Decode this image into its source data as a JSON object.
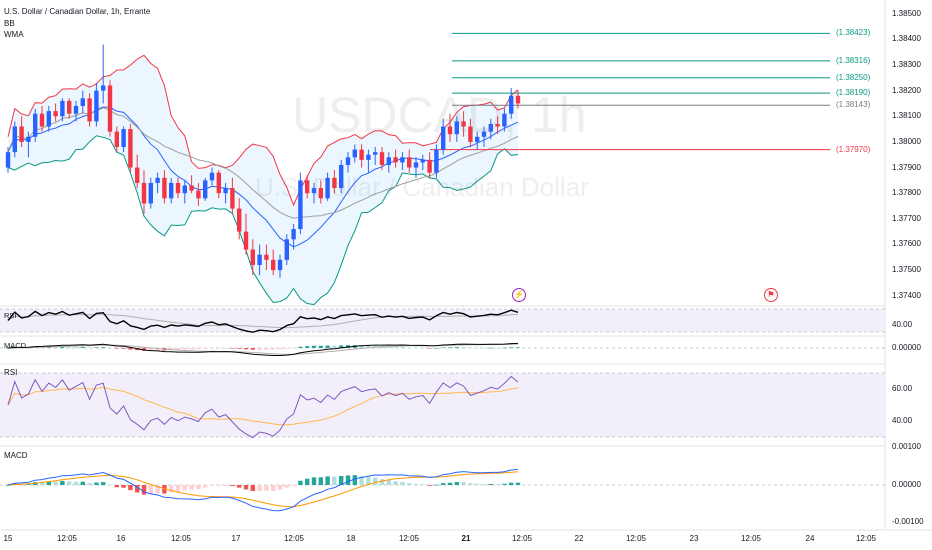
{
  "header": {
    "title": "U.S. Dollar / Canadian Dollar, 1h, Errante",
    "indicator_bb": "BB",
    "indicator_wma": "WMA"
  },
  "watermark": {
    "symbol": "USDCAD, 1h",
    "description": "U.S. Dollar / Canadian Dollar"
  },
  "pane_labels": {
    "rsi_small": "RSI",
    "macd_small": "MACD",
    "rsi": "RSI",
    "macd": "MACD"
  },
  "price_axis": [
    "1.38500",
    "1.38400",
    "1.38300",
    "1.38200",
    "1.38100",
    "1.38000",
    "1.37900",
    "1.37800",
    "1.37700",
    "1.37600",
    "1.37500",
    "1.37400"
  ],
  "rsi_small_axis": [
    "40.00"
  ],
  "macd_small_axis": [
    "0.00000"
  ],
  "rsi_axis": [
    "60.00",
    "40.00"
  ],
  "macd_axis": [
    "0.00100",
    "0.00000",
    "-0.00100"
  ],
  "time_axis": [
    "15",
    "12:05",
    "16",
    "12:05",
    "17",
    "12:05",
    "18",
    "12:05",
    "21",
    "12:05",
    "22",
    "12:05",
    "23",
    "12:05",
    "24",
    "12:05"
  ],
  "levels": [
    {
      "value": 1.38423,
      "label": "(1.38423)",
      "color": "#089981"
    },
    {
      "value": 1.38316,
      "label": "(1.38316)",
      "color": "#089981"
    },
    {
      "value": 1.3825,
      "label": "(1.38250)",
      "color": "#089981"
    },
    {
      "value": 1.3819,
      "label": "(1.38190)",
      "color": "#089981"
    },
    {
      "value": 1.38143,
      "label": "(1.38143)",
      "color": "#787b86"
    },
    {
      "value": 1.3797,
      "label": "(1.37970)",
      "color": "#f23645"
    }
  ],
  "colors": {
    "up": "#2962ff",
    "down": "#f23645",
    "bb_upper": "#f23645",
    "bb_lower": "#089981",
    "bb_basis": "#2962ff",
    "bb_fill": "#e3f2fd",
    "wma": "#9e9e9e",
    "rsi_line": "#7e57c2",
    "rsi_ma": "#ffb74d",
    "rsi_small_line": "#000000",
    "rsi_small_ma": "#b0b0b0",
    "macd_line": "#2962ff",
    "signal_line": "#ff9800",
    "hist_pos": "#26a69a",
    "hist_pos_light": "#b2dfdb",
    "hist_neg": "#ef5350",
    "hist_neg_light": "#ffcdd2",
    "pane_fill": "#f3effa",
    "event_dividend": "#9c27b0",
    "event_earnings": "#f23645"
  },
  "events": {
    "lightning": "lightning-icon",
    "earnings": "calendar-flag-icon"
  },
  "chart_data": {
    "type": "candlestick",
    "title": "U.S. Dollar / Canadian Dollar, 1h, Errante",
    "ylim": [
      1.3736,
      1.3853
    ],
    "ohlc": [
      [
        1.379,
        1.3798,
        1.3788,
        1.3796
      ],
      [
        1.3796,
        1.3808,
        1.3794,
        1.3806
      ],
      [
        1.3806,
        1.381,
        1.3798,
        1.38
      ],
      [
        1.38,
        1.3804,
        1.3794,
        1.3802
      ],
      [
        1.3802,
        1.3813,
        1.38,
        1.3811
      ],
      [
        1.3811,
        1.3814,
        1.3804,
        1.3806
      ],
      [
        1.3806,
        1.3814,
        1.3804,
        1.3812
      ],
      [
        1.3812,
        1.3815,
        1.3808,
        1.381
      ],
      [
        1.381,
        1.3817,
        1.3808,
        1.3816
      ],
      [
        1.3816,
        1.3817,
        1.3809,
        1.3811
      ],
      [
        1.3811,
        1.3816,
        1.3808,
        1.3814
      ],
      [
        1.3814,
        1.382,
        1.3811,
        1.3817
      ],
      [
        1.3817,
        1.3819,
        1.3806,
        1.3808
      ],
      [
        1.3808,
        1.3823,
        1.3806,
        1.382
      ],
      [
        1.382,
        1.3838,
        1.3815,
        1.3822
      ],
      [
        1.3822,
        1.3824,
        1.3802,
        1.3804
      ],
      [
        1.3804,
        1.3806,
        1.3796,
        1.3798
      ],
      [
        1.3798,
        1.3806,
        1.3796,
        1.3805
      ],
      [
        1.3805,
        1.3807,
        1.3788,
        1.379
      ],
      [
        1.379,
        1.3795,
        1.3782,
        1.3784
      ],
      [
        1.3784,
        1.3789,
        1.3772,
        1.3776
      ],
      [
        1.3776,
        1.3786,
        1.3774,
        1.3784
      ],
      [
        1.3784,
        1.3788,
        1.378,
        1.3786
      ],
      [
        1.3786,
        1.3789,
        1.3776,
        1.3778
      ],
      [
        1.3778,
        1.3786,
        1.3776,
        1.3784
      ],
      [
        1.3784,
        1.3786,
        1.3778,
        1.378
      ],
      [
        1.378,
        1.3785,
        1.3776,
        1.3783
      ],
      [
        1.3783,
        1.3787,
        1.378,
        1.3781
      ],
      [
        1.3781,
        1.3784,
        1.3775,
        1.3778
      ],
      [
        1.3778,
        1.3786,
        1.3777,
        1.3785
      ],
      [
        1.3785,
        1.379,
        1.3783,
        1.3788
      ],
      [
        1.3788,
        1.3789,
        1.3778,
        1.378
      ],
      [
        1.378,
        1.3784,
        1.3776,
        1.3782
      ],
      [
        1.3782,
        1.3786,
        1.3772,
        1.3774
      ],
      [
        1.3774,
        1.3778,
        1.3762,
        1.3765
      ],
      [
        1.3765,
        1.3772,
        1.3756,
        1.3758
      ],
      [
        1.3758,
        1.3762,
        1.3748,
        1.3752
      ],
      [
        1.3752,
        1.376,
        1.3748,
        1.3756
      ],
      [
        1.3756,
        1.376,
        1.375,
        1.3754
      ],
      [
        1.3754,
        1.3758,
        1.3748,
        1.375
      ],
      [
        1.375,
        1.3756,
        1.3747,
        1.3754
      ],
      [
        1.3754,
        1.3764,
        1.3752,
        1.3762
      ],
      [
        1.3762,
        1.3768,
        1.3758,
        1.3766
      ],
      [
        1.3766,
        1.3788,
        1.3764,
        1.3785
      ],
      [
        1.3785,
        1.3787,
        1.3778,
        1.378
      ],
      [
        1.378,
        1.3784,
        1.3776,
        1.3782
      ],
      [
        1.3782,
        1.3785,
        1.3776,
        1.3778
      ],
      [
        1.3778,
        1.3788,
        1.3777,
        1.3786
      ],
      [
        1.3786,
        1.3789,
        1.378,
        1.3782
      ],
      [
        1.3782,
        1.3793,
        1.378,
        1.3791
      ],
      [
        1.3791,
        1.3796,
        1.3788,
        1.3794
      ],
      [
        1.3794,
        1.3799,
        1.3792,
        1.3797
      ],
      [
        1.3797,
        1.3799,
        1.379,
        1.3793
      ],
      [
        1.3793,
        1.3797,
        1.3788,
        1.3795
      ],
      [
        1.3795,
        1.3798,
        1.3791,
        1.3796
      ],
      [
        1.3796,
        1.3798,
        1.3789,
        1.3791
      ],
      [
        1.3791,
        1.3796,
        1.3788,
        1.3794
      ],
      [
        1.3794,
        1.3797,
        1.379,
        1.3792
      ],
      [
        1.3792,
        1.3796,
        1.3789,
        1.3794
      ],
      [
        1.3794,
        1.3797,
        1.3788,
        1.379
      ],
      [
        1.379,
        1.3794,
        1.3786,
        1.3792
      ],
      [
        1.3792,
        1.3795,
        1.3789,
        1.3793
      ],
      [
        1.3793,
        1.3796,
        1.3786,
        1.3788
      ],
      [
        1.3788,
        1.3799,
        1.3786,
        1.3797
      ],
      [
        1.3797,
        1.3809,
        1.3795,
        1.3806
      ],
      [
        1.3806,
        1.3811,
        1.38,
        1.3803
      ],
      [
        1.3803,
        1.381,
        1.38,
        1.3808
      ],
      [
        1.3808,
        1.3812,
        1.3802,
        1.3806
      ],
      [
        1.3806,
        1.3809,
        1.3798,
        1.38
      ],
      [
        1.38,
        1.3804,
        1.3797,
        1.3802
      ],
      [
        1.3802,
        1.3806,
        1.3798,
        1.3804
      ],
      [
        1.3804,
        1.3809,
        1.3801,
        1.3807
      ],
      [
        1.3807,
        1.381,
        1.3803,
        1.3806
      ],
      [
        1.3806,
        1.3813,
        1.3804,
        1.3811
      ],
      [
        1.3811,
        1.3821,
        1.3809,
        1.3818
      ],
      [
        1.3818,
        1.382,
        1.3813,
        1.3815
      ]
    ]
  }
}
